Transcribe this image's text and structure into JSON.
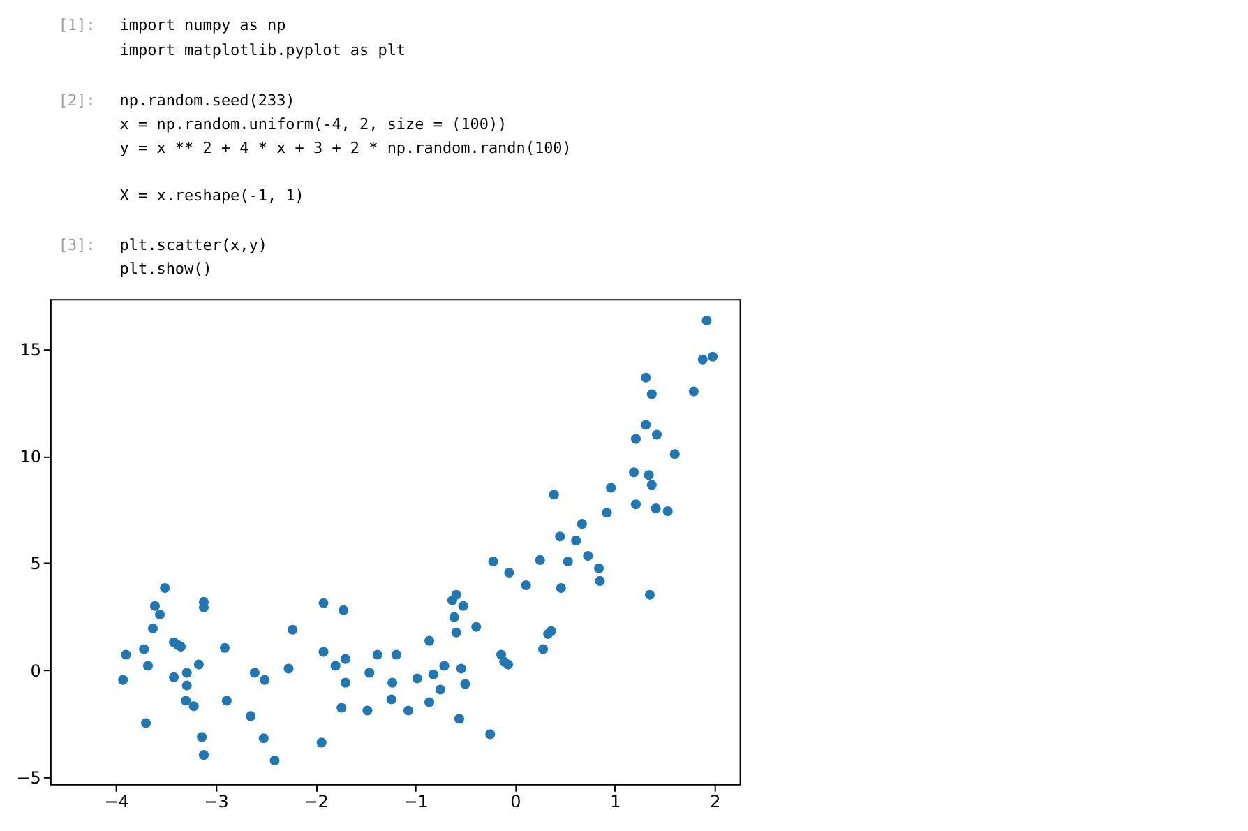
{
  "chart_data": {
    "type": "scatter",
    "annotations": [
      "[1]:",
      "import numpy as np",
      "import matplotlib.pyplot as plt",
      "[2]:",
      "np.random.seed(233)",
      "x = np.random.uniform(-4, 2, size = (100))",
      "y = x ** 2 + 4 * x + 3 + 2 * np.random.randn(100)",
      "X = x.reshape(-1, 1)",
      "[3]:",
      "plt.scatter(x,y)",
      "plt.show()"
    ],
    "x": [
      -3.93,
      -3.9,
      -3.72,
      -3.68,
      -3.7,
      -3.63,
      -3.61,
      -3.56,
      -3.51,
      -3.42,
      -3.38,
      -3.35,
      -3.42,
      -3.29,
      -3.29,
      -3.3,
      -3.22,
      -3.17,
      -3.12,
      -3.12,
      -3.14,
      -3.12,
      -2.91,
      -2.89,
      -2.65,
      -2.61,
      -2.51,
      -2.52,
      -2.41,
      -2.23,
      -2.27,
      -1.92,
      -1.92,
      -1.94,
      -1.72,
      -1.8,
      -1.7,
      -1.7,
      -1.74,
      -1.46,
      -1.48,
      -1.38,
      -1.19,
      -1.23,
      -1.24,
      -1.07,
      -0.98,
      -0.86,
      -0.82,
      -0.86,
      -0.75,
      -0.71,
      -0.61,
      -0.63,
      -0.59,
      -0.52,
      -0.59,
      -0.54,
      -0.5,
      -0.56,
      -0.39,
      -0.25,
      -0.22,
      -0.06,
      -0.14,
      -0.11,
      -0.07,
      0.11,
      0.25,
      0.45,
      0.61,
      0.67,
      0.53,
      0.46,
      0.73,
      0.84,
      0.85,
      1.35,
      0.28,
      0.33,
      0.36,
      0.39,
      0.92,
      0.96,
      1.19,
      1.21,
      1.34,
      1.37,
      1.41,
      1.53,
      1.21,
      1.31,
      1.42,
      1.6,
      1.31,
      1.37,
      1.79,
      1.88,
      1.98,
      1.92
    ],
    "series": [
      {
        "color": "#1f77b4",
        "values": [
          -0.46,
          0.72,
          0.98,
          0.2,
          -2.48,
          1.95,
          3.0,
          2.6,
          3.84,
          1.3,
          1.17,
          1.1,
          -0.33,
          -0.13,
          -0.72,
          -1.43,
          -1.69,
          0.26,
          3.19,
          2.93,
          -3.13,
          -3.97,
          1.04,
          -1.43,
          -2.15,
          -0.13,
          -0.46,
          -3.19,
          -4.23,
          1.89,
          0.07,
          3.13,
          0.85,
          -3.39,
          2.8,
          0.2,
          0.52,
          -0.59,
          -1.76,
          -0.13,
          -1.89,
          0.72,
          0.72,
          -0.59,
          -1.37,
          -1.89,
          -0.39,
          1.37,
          -0.2,
          -1.5,
          -0.91,
          0.2,
          2.48,
          3.26,
          3.52,
          3.0,
          1.76,
          0.07,
          -0.65,
          -2.28,
          2.02,
          -3.0,
          5.08,
          4.56,
          0.72,
          0.39,
          0.26,
          3.97,
          5.15,
          6.25,
          6.06,
          6.84,
          5.08,
          3.84,
          5.34,
          4.76,
          4.17,
          3.52,
          0.98,
          1.69,
          1.82,
          8.21,
          7.36,
          8.53,
          9.25,
          7.75,
          9.12,
          8.66,
          7.56,
          7.43,
          10.81,
          11.47,
          11.01,
          10.1,
          13.68,
          12.9,
          13.03,
          14.53,
          14.66,
          16.35
        ]
      }
    ],
    "xlim": [
      -4.66,
      2.25
    ],
    "ylim": [
      -5.33,
      17.35
    ],
    "xticks": [
      -4,
      -3,
      -2,
      -1,
      0,
      1,
      2
    ],
    "yticks": [
      -5,
      0,
      5,
      10,
      15
    ],
    "grid": false,
    "marker": "circle"
  }
}
